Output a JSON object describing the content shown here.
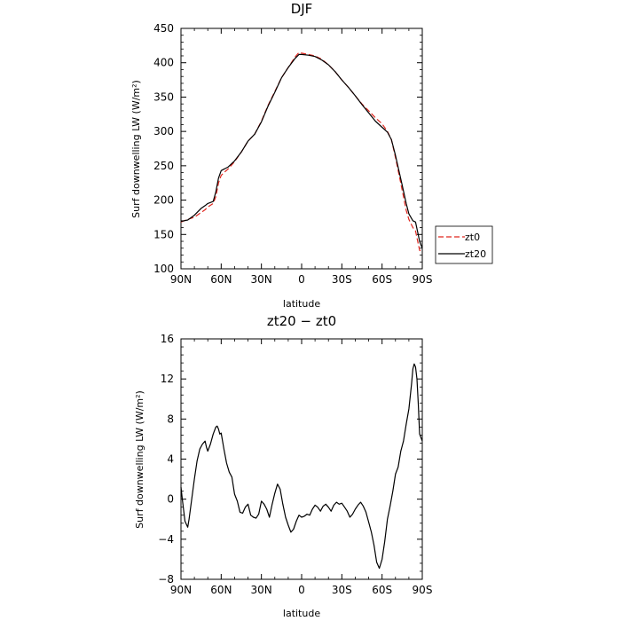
{
  "chart_data": [
    {
      "type": "line",
      "title": "DJF",
      "xlabel": "latitude",
      "ylabel": "Surf downwelling LW (W/m²)",
      "xlim": [
        90,
        -90
      ],
      "ylim": [
        100,
        450
      ],
      "x_ticks": [
        90,
        60,
        30,
        0,
        -30,
        -60,
        -90
      ],
      "x_tick_labels": [
        "90N",
        "60N",
        "30N",
        "0",
        "30S",
        "60S",
        "90S"
      ],
      "y_ticks": [
        100,
        150,
        200,
        250,
        300,
        350,
        400,
        450
      ],
      "y_tick_labels": [
        "100",
        "150",
        "200",
        "250",
        "300",
        "350",
        "400",
        "450"
      ],
      "legend_position": "outside-right",
      "x": [
        90,
        85,
        80,
        75,
        72,
        70,
        66,
        64,
        62,
        60,
        58,
        55,
        50,
        45,
        40,
        35,
        30,
        25,
        20,
        15,
        10,
        5,
        2,
        0,
        -5,
        -10,
        -15,
        -20,
        -25,
        -30,
        -35,
        -40,
        -45,
        -50,
        -55,
        -60,
        -64,
        -67,
        -70,
        -75,
        -78,
        -80,
        -83,
        -85,
        -88,
        -90
      ],
      "series": [
        {
          "name": "zt0",
          "color": "#e0261e",
          "dash": "6,3",
          "values": [
            168,
            172,
            175,
            182,
            186,
            190,
            195,
            205,
            225,
            236,
            240,
            245,
            256,
            270,
            286,
            296,
            315,
            338,
            358,
            378,
            393,
            408,
            415,
            414,
            412,
            410,
            405,
            397,
            387,
            375,
            364,
            352,
            340,
            330,
            320,
            311,
            300,
            288,
            262,
            215,
            185,
            172,
            160,
            155,
            127,
            124
          ]
        },
        {
          "name": "zt20",
          "color": "#000000",
          "dash": "",
          "values": [
            169,
            171,
            178,
            188,
            192,
            195,
            198,
            212,
            232,
            243,
            245,
            248,
            257,
            270,
            286,
            296,
            314,
            337,
            357,
            378,
            393,
            406,
            412,
            412,
            411,
            409,
            404,
            397,
            387,
            375,
            364,
            352,
            339,
            327,
            315,
            306,
            299,
            288,
            265,
            222,
            195,
            180,
            170,
            168,
            140,
            130
          ]
        }
      ]
    },
    {
      "type": "line",
      "title": "zt20 − zt0",
      "xlabel": "latitude",
      "ylabel": "Surf downwelling LW (W/m²)",
      "xlim": [
        90,
        -90
      ],
      "ylim": [
        -8,
        16
      ],
      "x_ticks": [
        90,
        60,
        30,
        0,
        -30,
        -60,
        -90
      ],
      "x_tick_labels": [
        "90N",
        "60N",
        "30N",
        "0",
        "30S",
        "60S",
        "90S"
      ],
      "y_ticks": [
        -8,
        -4,
        0,
        4,
        8,
        12,
        16
      ],
      "y_tick_labels": [
        "−8",
        "−4",
        "0",
        "4",
        "8",
        "12",
        "16"
      ],
      "x": [
        90,
        89,
        87,
        85,
        84,
        82,
        80,
        78,
        76,
        74,
        72,
        71,
        70,
        68,
        66,
        64,
        63,
        62,
        61,
        60,
        58,
        56,
        54,
        52,
        50,
        48,
        46,
        44,
        42,
        40,
        38,
        36,
        34,
        32,
        30,
        28,
        26,
        24,
        22,
        20,
        18,
        16,
        14,
        12,
        10,
        8,
        6,
        4,
        2,
        0,
        -2,
        -4,
        -6,
        -8,
        -10,
        -12,
        -14,
        -16,
        -18,
        -20,
        -22,
        -24,
        -26,
        -28,
        -30,
        -32,
        -34,
        -36,
        -38,
        -40,
        -42,
        -44,
        -46,
        -48,
        -50,
        -52,
        -54,
        -56,
        -58,
        -60,
        -62,
        -64,
        -66,
        -68,
        -70,
        -72,
        -74,
        -76,
        -78,
        -80,
        -82,
        -83,
        -84,
        -85,
        -86,
        -87,
        -88,
        -90
      ],
      "series": [
        {
          "name": "",
          "color": "#000000",
          "dash": "",
          "values": [
            1.2,
            0.0,
            -2.2,
            -2.8,
            -2.0,
            0.0,
            2.0,
            3.8,
            5.0,
            5.5,
            5.8,
            5.2,
            4.8,
            5.5,
            6.5,
            7.2,
            7.3,
            7.0,
            6.5,
            6.6,
            5.0,
            3.6,
            2.7,
            2.2,
            0.5,
            -0.2,
            -1.3,
            -1.4,
            -0.8,
            -0.5,
            -1.6,
            -1.8,
            -1.9,
            -1.5,
            -0.2,
            -0.5,
            -1.0,
            -1.8,
            -0.5,
            0.6,
            1.5,
            1.0,
            -0.5,
            -1.8,
            -2.6,
            -3.3,
            -3.0,
            -2.2,
            -1.6,
            -1.8,
            -1.7,
            -1.5,
            -1.6,
            -1.0,
            -0.6,
            -0.8,
            -1.2,
            -0.7,
            -0.5,
            -0.8,
            -1.2,
            -0.6,
            -0.3,
            -0.5,
            -0.4,
            -0.8,
            -1.2,
            -1.8,
            -1.5,
            -1.0,
            -0.6,
            -0.3,
            -0.7,
            -1.3,
            -2.3,
            -3.3,
            -4.6,
            -6.3,
            -6.9,
            -6.0,
            -4.2,
            -2.0,
            -0.7,
            0.8,
            2.5,
            3.2,
            4.8,
            5.8,
            7.5,
            9.0,
            11.5,
            13.0,
            13.5,
            13.2,
            12.0,
            9.5,
            6.5,
            5.8
          ]
        }
      ]
    }
  ]
}
